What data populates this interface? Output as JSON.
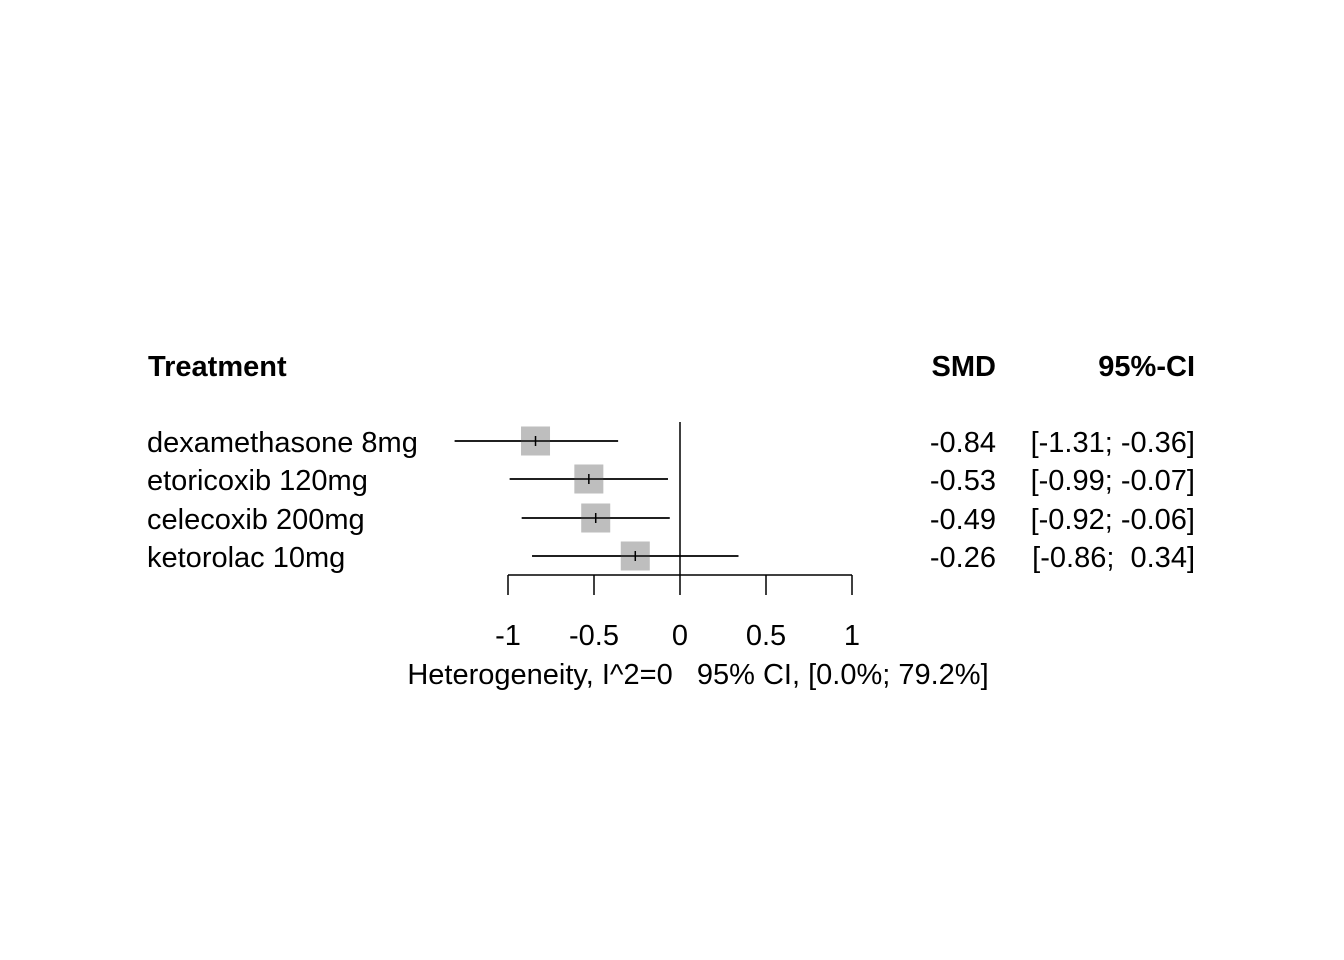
{
  "chart_data": {
    "type": "forest",
    "headers": {
      "label": "Treatment",
      "estimate": "SMD",
      "ci": "95%-CI"
    },
    "studies": [
      {
        "name": "dexamethasone 8mg",
        "smd": -0.84,
        "lower": -1.31,
        "upper": -0.36,
        "smd_text": "-0.84",
        "ci_text": "[-1.31; -0.36]"
      },
      {
        "name": "etoricoxib 120mg",
        "smd": -0.53,
        "lower": -0.99,
        "upper": -0.07,
        "smd_text": "-0.53",
        "ci_text": "[-0.99; -0.07]"
      },
      {
        "name": "celecoxib 200mg",
        "smd": -0.49,
        "lower": -0.92,
        "upper": -0.06,
        "smd_text": "-0.49",
        "ci_text": "[-0.92; -0.06]"
      },
      {
        "name": "ketorolac 10mg",
        "smd": -0.26,
        "lower": -0.86,
        "upper": 0.34,
        "smd_text": "-0.26",
        "ci_text": "[-0.86;  0.34]"
      }
    ],
    "xaxis": {
      "range": [
        -1,
        1
      ],
      "ticks": [
        -1,
        -0.5,
        0,
        0.5,
        1
      ],
      "tick_labels": [
        "-1",
        "-0.5",
        "0",
        "0.5",
        "1"
      ]
    },
    "reference_line": 0,
    "footer": "Heterogeneity, I^2=0   95% CI, [0.0%; 79.2%]",
    "colors": {
      "box": "#bebebe",
      "line": "#000000"
    }
  }
}
